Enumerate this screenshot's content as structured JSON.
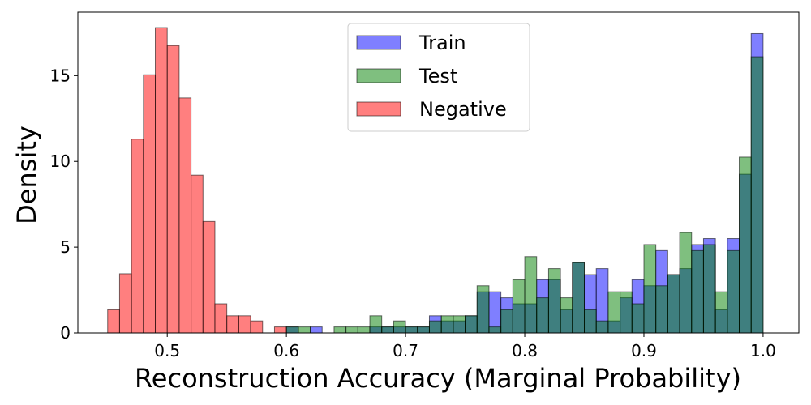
{
  "chart_data": {
    "type": "histogram",
    "title": "",
    "xlabel": "Reconstruction Accuracy (Marginal Probability)",
    "ylabel": "Density",
    "xlim": [
      0.425,
      1.03
    ],
    "ylim": [
      0,
      18.7
    ],
    "xticks": [
      0.5,
      0.6,
      0.7,
      0.8,
      0.9,
      1.0
    ],
    "xtick_labels": [
      "0.5",
      "0.6",
      "0.7",
      "0.8",
      "0.9",
      "1.0"
    ],
    "yticks": [
      0,
      5,
      10,
      15
    ],
    "ytick_labels": [
      "0",
      "5",
      "10",
      "15"
    ],
    "grid": false,
    "legend_position": "top-center",
    "bin_width": 0.01,
    "series": [
      {
        "name": "Train",
        "color": "#0000ff",
        "alpha": 0.5,
        "bin_starts": [
          0.6,
          0.62,
          0.67,
          0.68,
          0.69,
          0.7,
          0.71,
          0.72,
          0.73,
          0.74,
          0.75,
          0.76,
          0.77,
          0.78,
          0.79,
          0.8,
          0.81,
          0.82,
          0.83,
          0.84,
          0.85,
          0.86,
          0.87,
          0.88,
          0.89,
          0.9,
          0.91,
          0.92,
          0.93,
          0.94,
          0.95,
          0.96,
          0.97,
          0.98,
          0.99
        ],
        "values": [
          0.35,
          0.35,
          0.35,
          0.35,
          0.35,
          0.35,
          0.35,
          1.0,
          0.7,
          0.7,
          1.0,
          2.4,
          2.4,
          2.05,
          1.7,
          1.7,
          3.1,
          3.1,
          1.35,
          4.1,
          3.4,
          3.75,
          0.7,
          2.05,
          3.1,
          2.75,
          4.8,
          3.4,
          3.75,
          5.15,
          5.5,
          1.35,
          5.5,
          9.25,
          17.45
        ]
      },
      {
        "name": "Test",
        "color": "#008000",
        "alpha": 0.5,
        "bin_starts": [
          0.6,
          0.61,
          0.64,
          0.65,
          0.66,
          0.67,
          0.68,
          0.69,
          0.7,
          0.71,
          0.72,
          0.73,
          0.74,
          0.75,
          0.76,
          0.77,
          0.78,
          0.79,
          0.8,
          0.81,
          0.82,
          0.83,
          0.84,
          0.85,
          0.86,
          0.87,
          0.88,
          0.89,
          0.9,
          0.91,
          0.92,
          0.93,
          0.94,
          0.95,
          0.96,
          0.97,
          0.98,
          0.99
        ],
        "values": [
          0.35,
          0.35,
          0.35,
          0.35,
          0.35,
          1.0,
          0.35,
          0.7,
          0.35,
          0.35,
          0.7,
          1.0,
          1.0,
          1.0,
          2.75,
          0.35,
          1.35,
          3.1,
          4.45,
          2.05,
          3.75,
          2.05,
          4.1,
          1.35,
          0.7,
          2.4,
          2.4,
          1.7,
          5.15,
          2.75,
          3.4,
          5.85,
          4.8,
          5.15,
          2.4,
          4.8,
          10.25,
          16.1
        ]
      },
      {
        "name": "Negative",
        "color": "#ff0000",
        "alpha": 0.5,
        "bin_starts": [
          0.45,
          0.46,
          0.47,
          0.48,
          0.49,
          0.5,
          0.51,
          0.52,
          0.53,
          0.54,
          0.55,
          0.56,
          0.57,
          0.59
        ],
        "values": [
          1.35,
          3.45,
          11.3,
          15.05,
          17.8,
          16.75,
          13.7,
          9.2,
          6.5,
          1.7,
          1.0,
          1.0,
          0.7,
          0.35
        ]
      }
    ]
  }
}
